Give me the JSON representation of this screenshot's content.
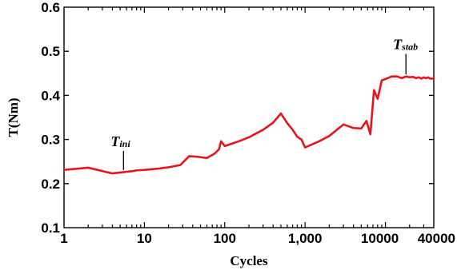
{
  "chart_data": {
    "type": "line",
    "xlabel": "Cycles",
    "ylabel": "T(Nm)",
    "x_scale": "log",
    "xlim": [
      1,
      40000
    ],
    "ylim": [
      0.1,
      0.6
    ],
    "x_ticks": [
      {
        "value": 1,
        "label": "1"
      },
      {
        "value": 10,
        "label": "10"
      },
      {
        "value": 100,
        "label": "100"
      },
      {
        "value": 1000,
        "label": "1,000"
      },
      {
        "value": 10000,
        "label": "10000"
      },
      {
        "value": 40000,
        "label": "40000"
      }
    ],
    "y_ticks": [
      {
        "value": 0.1,
        "label": "0.1"
      },
      {
        "value": 0.2,
        "label": "0.2"
      },
      {
        "value": 0.3,
        "label": "0.3"
      },
      {
        "value": 0.4,
        "label": "0.4"
      },
      {
        "value": 0.5,
        "label": "0.5"
      },
      {
        "value": 0.6,
        "label": "0.6"
      }
    ],
    "grid": false,
    "series": [
      {
        "color": "#e8141c",
        "x": [
          1,
          2,
          4,
          5.5,
          7,
          8,
          10,
          15,
          20,
          28,
          36,
          45,
          60,
          75,
          85,
          90,
          100,
          150,
          200,
          300,
          400,
          500,
          600,
          700,
          800,
          900,
          1000,
          1500,
          2000,
          3000,
          4000,
          5000,
          5800,
          6500,
          7200,
          8000,
          9000,
          10000,
          12000,
          14000,
          16000,
          18000,
          20000,
          22000,
          24000,
          26000,
          28000,
          30000,
          32000,
          34000,
          36000,
          40000
        ],
        "y": [
          0.231,
          0.236,
          0.223,
          0.226,
          0.228,
          0.23,
          0.231,
          0.234,
          0.237,
          0.242,
          0.262,
          0.261,
          0.258,
          0.268,
          0.278,
          0.296,
          0.285,
          0.296,
          0.305,
          0.322,
          0.338,
          0.359,
          0.337,
          0.322,
          0.306,
          0.3,
          0.282,
          0.296,
          0.308,
          0.334,
          0.326,
          0.325,
          0.342,
          0.312,
          0.412,
          0.392,
          0.434,
          0.437,
          0.443,
          0.443,
          0.439,
          0.443,
          0.441,
          0.442,
          0.439,
          0.441,
          0.438,
          0.441,
          0.439,
          0.441,
          0.438,
          0.438
        ]
      }
    ],
    "annotations": [
      {
        "text": "T",
        "subscript": "ini",
        "x": 5.5,
        "y": 0.227,
        "label_y": 0.285
      },
      {
        "text": "T",
        "subscript": "stab",
        "x": 18000,
        "y": 0.444,
        "label_y": 0.505
      }
    ]
  }
}
